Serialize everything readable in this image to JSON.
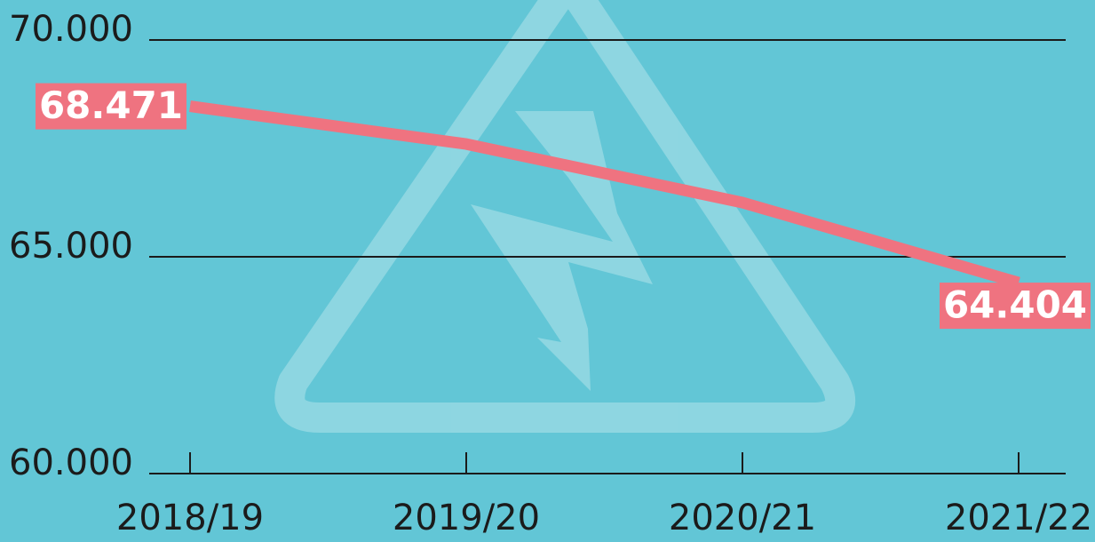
{
  "chart_data": {
    "type": "line",
    "categories": [
      "2018/19",
      "2019/20",
      "2020/21",
      "2021/22"
    ],
    "series": [
      {
        "color": "#ef7380",
        "values": [
          68471,
          67600,
          66250,
          64404
        ],
        "value_labels": [
          "68.471",
          null,
          null,
          "64.404"
        ]
      }
    ],
    "ylim": [
      60000,
      70000
    ],
    "yticks": [
      {
        "value": 60000,
        "label": "60.000"
      },
      {
        "value": 65000,
        "label": "65.000"
      },
      {
        "value": 70000,
        "label": "70.000"
      }
    ],
    "grid": true
  }
}
